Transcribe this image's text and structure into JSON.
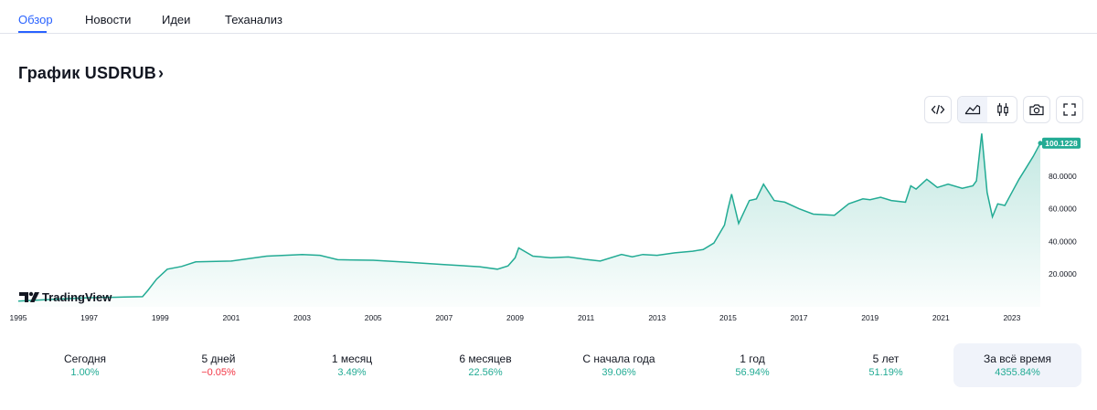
{
  "tabs": [
    "Обзор",
    "Новости",
    "Идеи",
    "Теханализ"
  ],
  "active_tab": 0,
  "title": "График USDRUB",
  "title_chevron": "›",
  "toolbar": {
    "embed_icon": "code-icon",
    "area_icon": "area-chart-icon",
    "candles_icon": "candlestick-icon",
    "snapshot_icon": "camera-icon",
    "fullscreen_icon": "fullscreen-icon"
  },
  "brand": "TradingView",
  "colors": {
    "line": "#22ab94",
    "accent": "#2962ff",
    "positive": "#22ab94",
    "negative": "#f23645",
    "badge": "#22ab94"
  },
  "chart_data": {
    "type": "area",
    "last_value_label": "100.1228",
    "x_ticks": [
      "1995",
      "1997",
      "1999",
      "2001",
      "2003",
      "2005",
      "2007",
      "2009",
      "2011",
      "2013",
      "2015",
      "2017",
      "2019",
      "2021",
      "2023"
    ],
    "y_ticks": [
      "20.0000",
      "40.0000",
      "60.0000",
      "80.0000"
    ],
    "ylim": [
      0,
      105
    ],
    "xlim": [
      1995.0,
      2023.8
    ],
    "x": [
      1995.0,
      1996.0,
      1997.0,
      1998.0,
      1998.5,
      1998.65,
      1998.9,
      1999.2,
      1999.6,
      2000.0,
      2001.0,
      2002.0,
      2003.0,
      2003.5,
      2004.0,
      2005.0,
      2006.0,
      2007.0,
      2008.0,
      2008.5,
      2008.8,
      2009.0,
      2009.1,
      2009.5,
      2010.0,
      2010.5,
      2011.0,
      2011.4,
      2012.0,
      2012.3,
      2012.6,
      2013.0,
      2013.5,
      2014.0,
      2014.3,
      2014.6,
      2014.9,
      2015.0,
      2015.1,
      2015.3,
      2015.6,
      2015.8,
      2016.0,
      2016.3,
      2016.6,
      2017.0,
      2017.4,
      2018.0,
      2018.4,
      2018.8,
      2019.0,
      2019.3,
      2019.6,
      2020.0,
      2020.15,
      2020.3,
      2020.6,
      2020.9,
      2021.2,
      2021.6,
      2021.9,
      2022.0,
      2022.15,
      2022.3,
      2022.45,
      2022.6,
      2022.8,
      2023.0,
      2023.2,
      2023.4,
      2023.6,
      2023.8
    ],
    "y": [
      3.5,
      4.6,
      5.6,
      6.0,
      6.2,
      10.0,
      17.0,
      23.0,
      24.7,
      27.5,
      28.0,
      31.0,
      32.0,
      31.5,
      28.8,
      28.5,
      27.2,
      25.8,
      24.5,
      23.0,
      25.0,
      30.0,
      36.0,
      31.0,
      30.0,
      30.5,
      29.0,
      28.0,
      32.0,
      30.6,
      32.0,
      31.5,
      33.0,
      34.0,
      35.0,
      39.0,
      50.0,
      60.0,
      69.0,
      51.0,
      65.0,
      66.0,
      75.0,
      65.0,
      64.0,
      60.0,
      56.7,
      56.0,
      63.0,
      66.0,
      65.5,
      67.0,
      65.0,
      64.0,
      74.0,
      72.0,
      78.0,
      73.0,
      75.0,
      72.5,
      74.0,
      77.0,
      106.0,
      70.0,
      55.0,
      63.0,
      62.0,
      70.0,
      78.0,
      85.0,
      92.0,
      100.1
    ]
  },
  "stats": [
    {
      "label": "Сегодня",
      "value": "1.00%",
      "sign": "pos"
    },
    {
      "label": "5 дней",
      "value": "−0.05%",
      "sign": "neg"
    },
    {
      "label": "1 месяц",
      "value": "3.49%",
      "sign": "pos"
    },
    {
      "label": "6 месяцев",
      "value": "22.56%",
      "sign": "pos"
    },
    {
      "label": "С начала года",
      "value": "39.06%",
      "sign": "pos"
    },
    {
      "label": "1 год",
      "value": "56.94%",
      "sign": "pos"
    },
    {
      "label": "5 лет",
      "value": "51.19%",
      "sign": "pos"
    },
    {
      "label": "За всё время",
      "value": "4355.84%",
      "sign": "pos",
      "selected": true
    }
  ]
}
